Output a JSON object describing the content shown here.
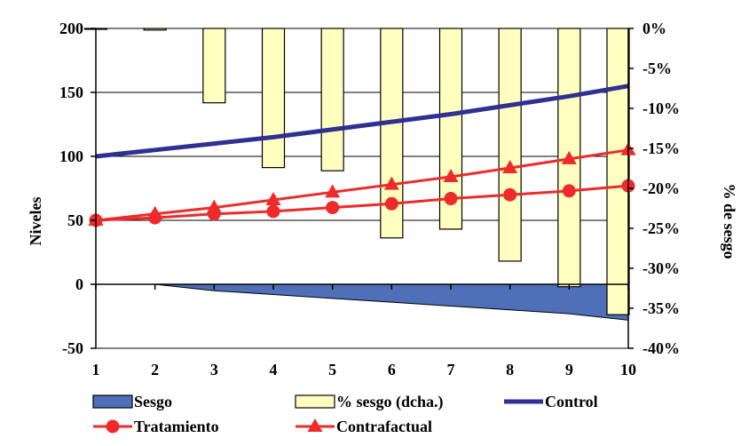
{
  "chart_data": {
    "type": "bar",
    "title": "",
    "xlabel": "",
    "ylabel": "Niveles",
    "y2label": "% de sesgo",
    "x": [
      1,
      2,
      3,
      4,
      5,
      6,
      7,
      8,
      9,
      10
    ],
    "x_tick_labels": [
      "1",
      "2",
      "3",
      "4",
      "5",
      "6",
      "7",
      "8",
      "9",
      "10"
    ],
    "ylim": [
      -50,
      200
    ],
    "y_tick_labels": [
      "200",
      "150",
      "100",
      "50",
      "0",
      "-50"
    ],
    "y2lim": [
      -40,
      0
    ],
    "y2_tick_labels": [
      "0%",
      "-5%",
      "-10%",
      "-15%",
      "-20%",
      "-25%",
      "-30%",
      "-35%",
      "-40%"
    ],
    "grid": true,
    "legend_position": "bottom",
    "series": [
      {
        "name": "Sesgo",
        "kind": "area",
        "axis": "left",
        "color": "#4F6FB8",
        "values": [
          0,
          0,
          -5,
          -8,
          -11,
          -14,
          -17,
          -20,
          -23,
          -28
        ]
      },
      {
        "name": "% sesgo (dcha.)",
        "kind": "bar",
        "axis": "right",
        "color": "#FFFFC0",
        "values": [
          0,
          -0.2,
          -9.3,
          -17.4,
          -17.8,
          -26.2,
          -25.1,
          -29.1,
          -32.3,
          -35.8
        ]
      },
      {
        "name": "Control",
        "kind": "line",
        "axis": "left",
        "color": "#2E3192",
        "values": [
          100,
          105,
          110,
          115,
          121,
          127,
          133,
          140,
          147,
          155
        ]
      },
      {
        "name": "Tratamiento",
        "kind": "line",
        "marker": "circle",
        "axis": "left",
        "color": "#EE2B2B",
        "values": [
          50,
          52,
          55,
          57,
          60,
          63,
          67,
          70,
          73,
          77
        ]
      },
      {
        "name": "Contrafactual",
        "kind": "line",
        "marker": "triangle",
        "axis": "left",
        "color": "#EE2B2B",
        "values": [
          50,
          55,
          60,
          66,
          72,
          78,
          84,
          91,
          98,
          105
        ]
      }
    ]
  }
}
